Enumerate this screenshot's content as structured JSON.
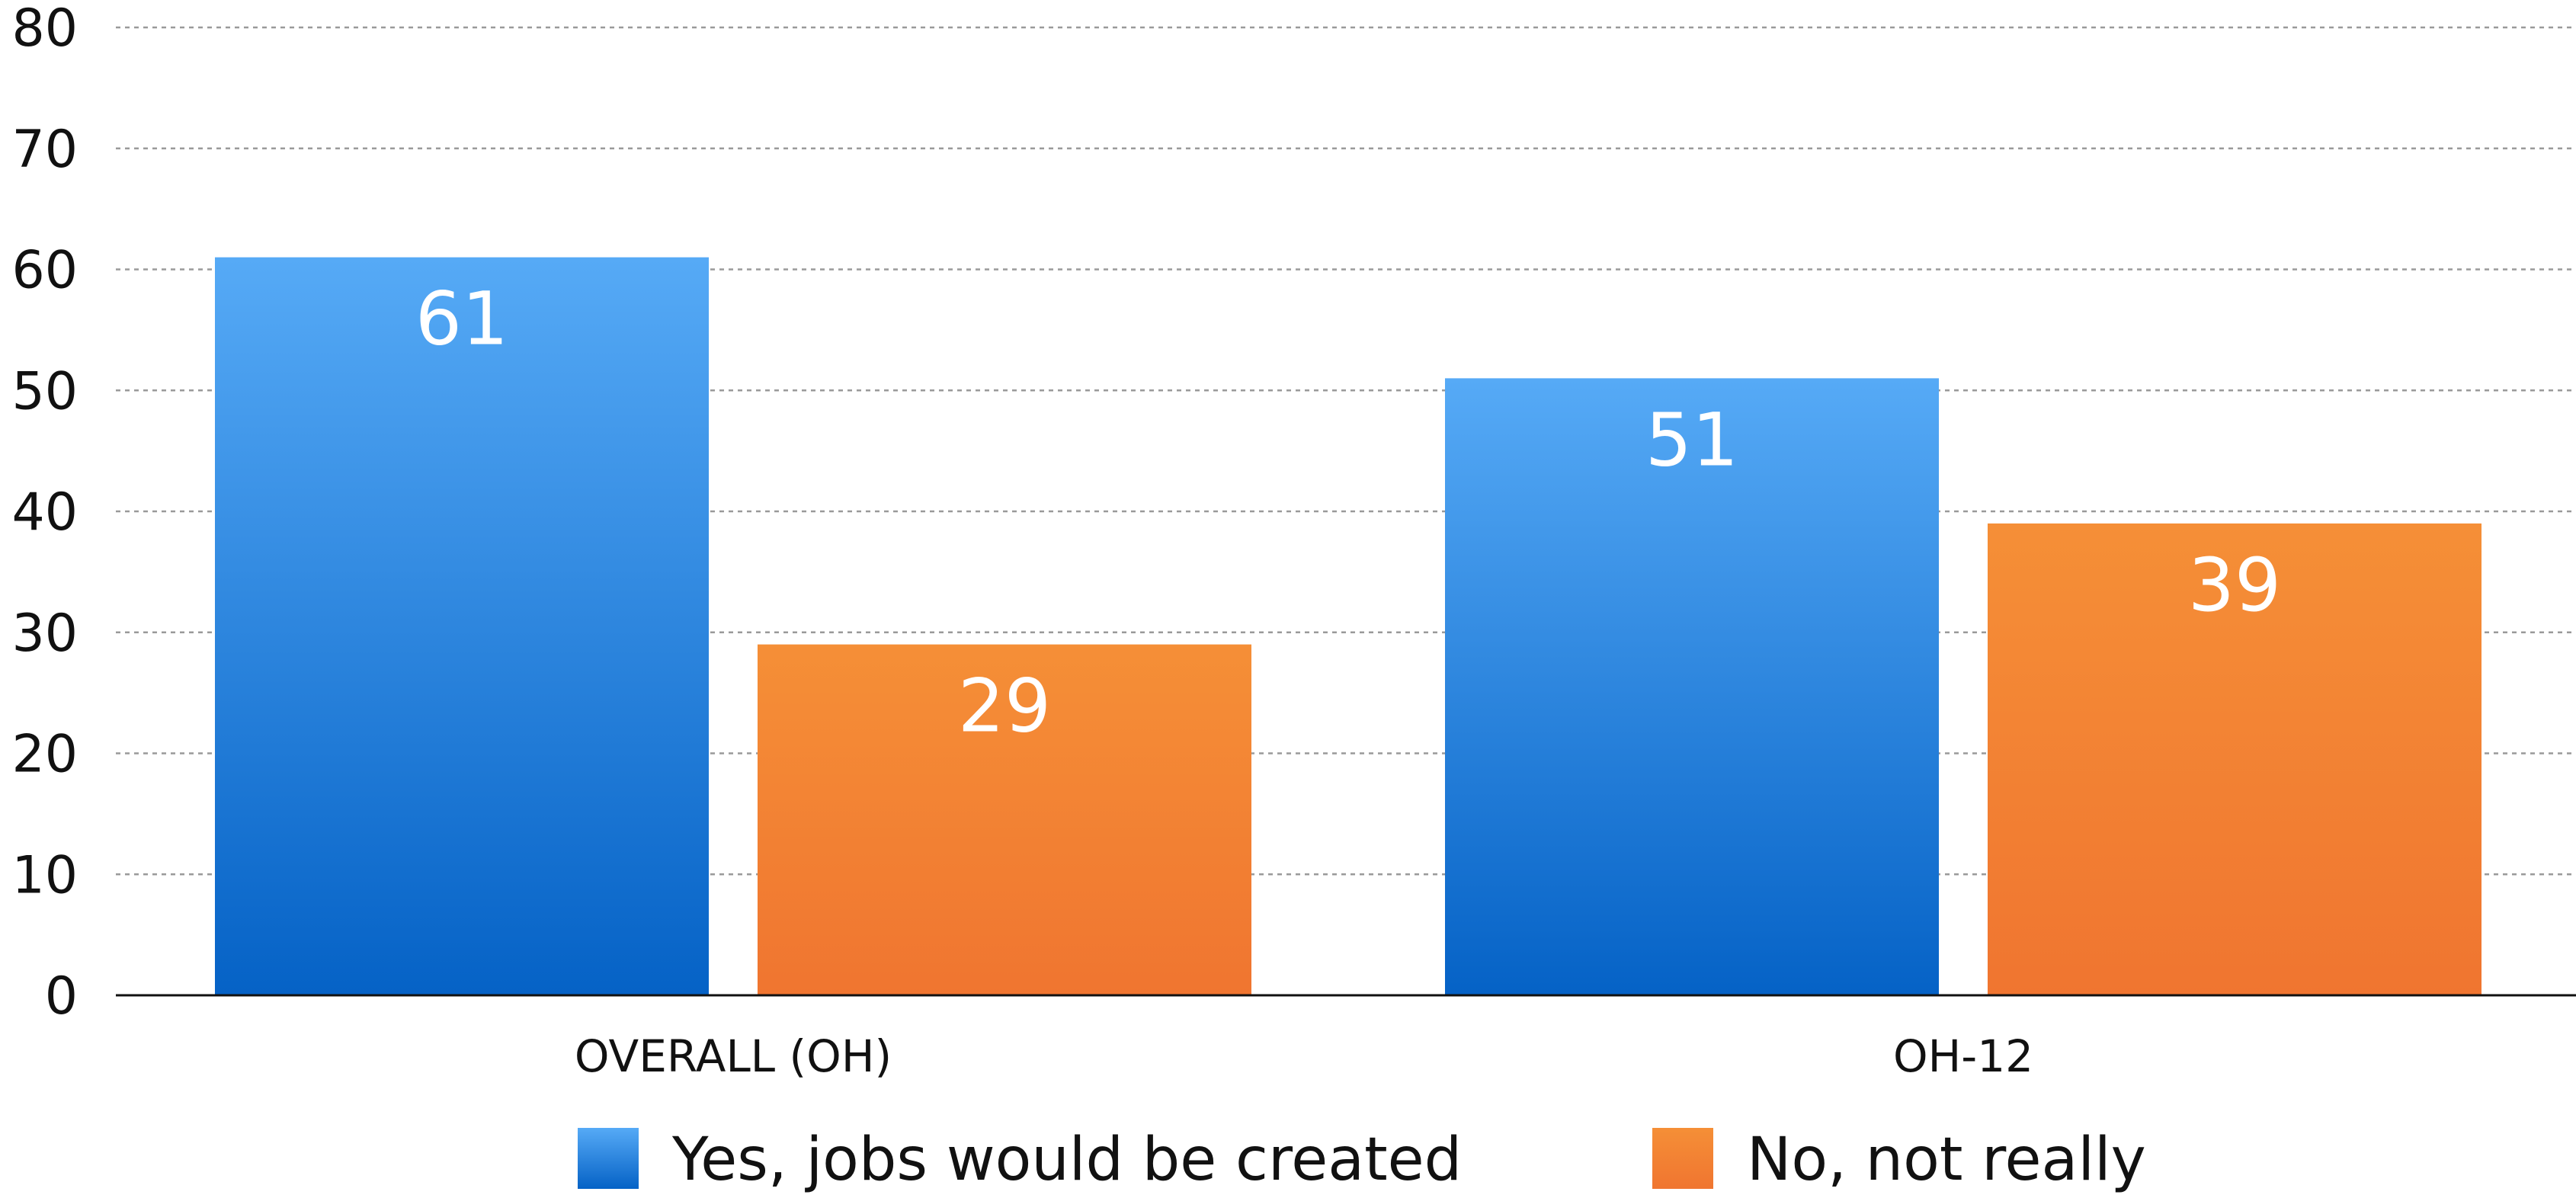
{
  "chart_data": {
    "type": "bar",
    "categories": [
      "OVERALL (OH)",
      "OH-12"
    ],
    "series": [
      {
        "name": "Yes, jobs would be created",
        "values": [
          61,
          51
        ],
        "color_top": "#56aaf6",
        "color_bottom": "#0562c6"
      },
      {
        "name": "No, not really",
        "values": [
          29,
          39
        ],
        "color_top": "#f58f37",
        "color_bottom": "#f07530"
      }
    ],
    "y_ticks": [
      "0",
      "10",
      "20",
      "30",
      "40",
      "50",
      "60",
      "70",
      "80"
    ],
    "ylim": [
      0,
      80
    ],
    "grid": true,
    "legend_position": "bottom",
    "title": "",
    "xlabel": "",
    "ylabel": ""
  }
}
